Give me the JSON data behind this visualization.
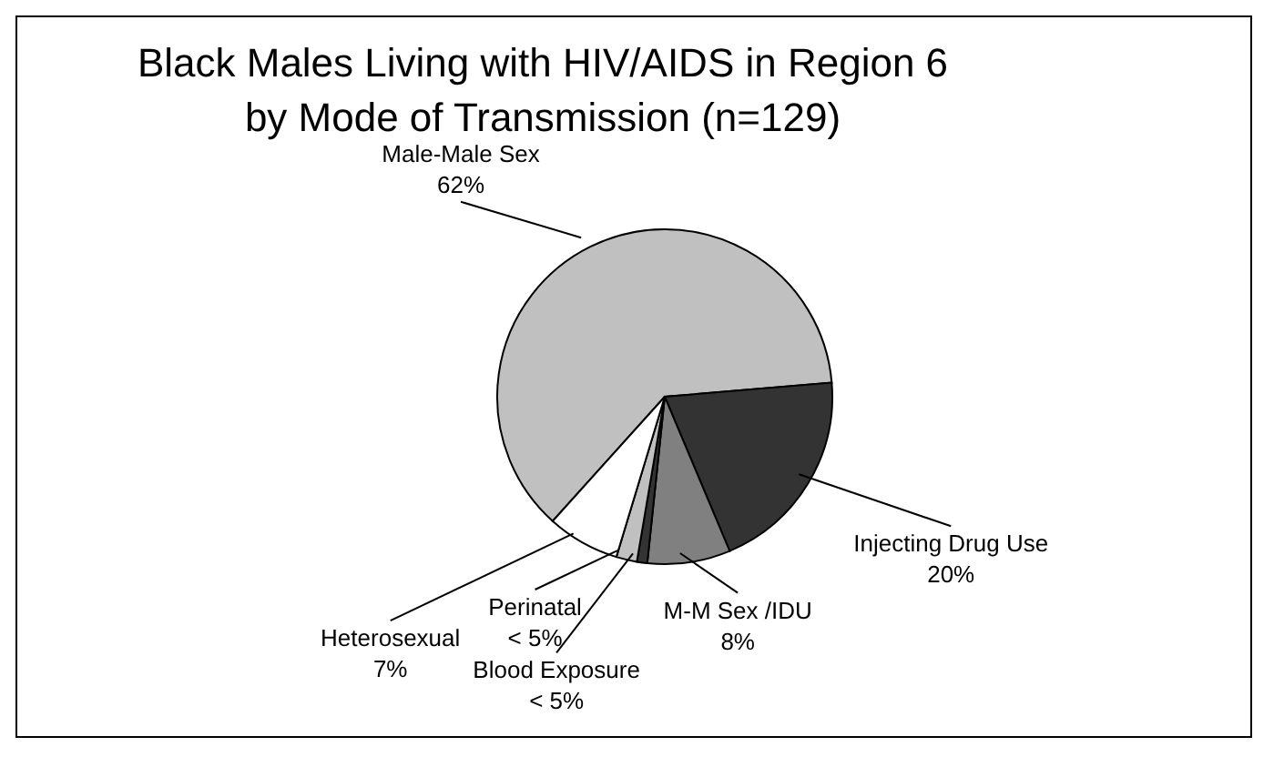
{
  "chart_data": {
    "type": "pie",
    "title": "Black Males Living with HIV/AIDS in Region 6\nby Mode of Transmission (n=129)",
    "categories": [
      "Male-Male Sex",
      "Injecting Drug Use",
      "M-M Sex /IDU",
      "Blood Exposure",
      "Perinatal",
      "Heterosexual"
    ],
    "values": [
      62,
      20,
      8,
      1,
      2,
      7
    ],
    "value_labels": [
      "62%",
      "20%",
      "8%",
      "< 5%",
      "< 5%",
      "7%"
    ],
    "colors": [
      "#c0c0c0",
      "#333333",
      "#808080",
      "#333333",
      "#c0c0c0",
      "#ffffff"
    ],
    "legend": false
  }
}
